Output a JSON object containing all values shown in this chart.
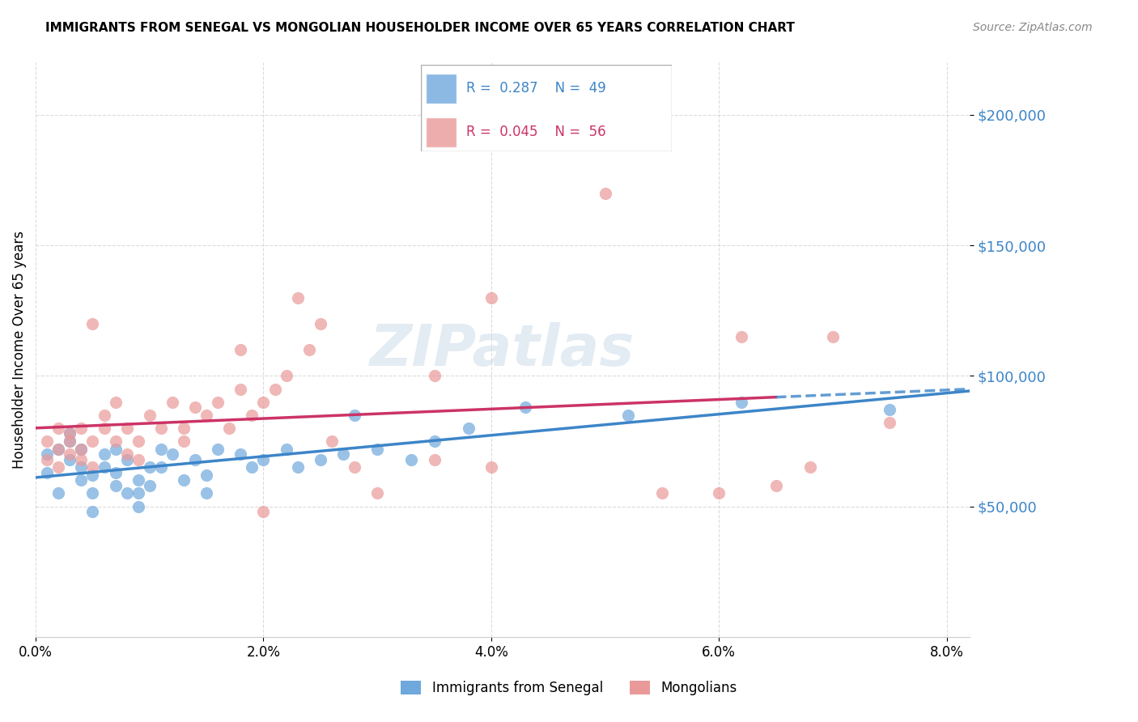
{
  "title": "IMMIGRANTS FROM SENEGAL VS MONGOLIAN HOUSEHOLDER INCOME OVER 65 YEARS CORRELATION CHART",
  "source": "Source: ZipAtlas.com",
  "ylabel": "Householder Income Over 65 years",
  "xlabel_ticks": [
    "0.0%",
    "2.0%",
    "4.0%",
    "6.0%",
    "8.0%"
  ],
  "xlabel_vals": [
    0.0,
    0.02,
    0.04,
    0.06,
    0.08
  ],
  "ylim": [
    0,
    220000
  ],
  "xlim": [
    0.0,
    0.082
  ],
  "ytick_vals": [
    50000,
    100000,
    150000,
    200000
  ],
  "ytick_labels": [
    "$50,000",
    "$100,000",
    "$150,000",
    "$200,000"
  ],
  "legend_r1": "R = 0.287",
  "legend_n1": "N = 49",
  "legend_r2": "R = 0.045",
  "legend_n2": "N = 56",
  "senegal_color": "#6fa8dc",
  "mongolian_color": "#ea9999",
  "senegal_line_color": "#3d85c8",
  "mongolian_line_color": "#cc3366",
  "watermark": "ZIPatlas",
  "senegal_x": [
    0.001,
    0.001,
    0.002,
    0.002,
    0.003,
    0.003,
    0.003,
    0.004,
    0.004,
    0.004,
    0.005,
    0.005,
    0.005,
    0.006,
    0.006,
    0.007,
    0.007,
    0.007,
    0.008,
    0.008,
    0.009,
    0.009,
    0.009,
    0.01,
    0.01,
    0.011,
    0.011,
    0.012,
    0.013,
    0.014,
    0.015,
    0.015,
    0.016,
    0.018,
    0.019,
    0.02,
    0.022,
    0.023,
    0.025,
    0.027,
    0.028,
    0.03,
    0.033,
    0.035,
    0.038,
    0.043,
    0.052,
    0.062,
    0.075
  ],
  "senegal_y": [
    63000,
    70000,
    72000,
    55000,
    75000,
    68000,
    78000,
    65000,
    60000,
    72000,
    55000,
    48000,
    62000,
    70000,
    65000,
    58000,
    63000,
    72000,
    55000,
    68000,
    60000,
    55000,
    50000,
    65000,
    58000,
    72000,
    65000,
    70000,
    60000,
    68000,
    62000,
    55000,
    72000,
    70000,
    65000,
    68000,
    72000,
    65000,
    68000,
    70000,
    85000,
    72000,
    68000,
    75000,
    80000,
    88000,
    85000,
    90000,
    87000
  ],
  "mongolian_x": [
    0.001,
    0.001,
    0.002,
    0.002,
    0.002,
    0.003,
    0.003,
    0.003,
    0.004,
    0.004,
    0.004,
    0.005,
    0.005,
    0.005,
    0.006,
    0.006,
    0.007,
    0.007,
    0.008,
    0.008,
    0.009,
    0.009,
    0.01,
    0.011,
    0.012,
    0.013,
    0.013,
    0.014,
    0.015,
    0.016,
    0.017,
    0.018,
    0.019,
    0.02,
    0.021,
    0.022,
    0.023,
    0.024,
    0.025,
    0.026,
    0.028,
    0.03,
    0.035,
    0.04,
    0.05,
    0.055,
    0.06,
    0.065,
    0.068,
    0.018,
    0.02,
    0.035,
    0.04,
    0.062,
    0.07,
    0.075
  ],
  "mongolian_y": [
    75000,
    68000,
    72000,
    80000,
    65000,
    78000,
    70000,
    75000,
    68000,
    72000,
    80000,
    120000,
    65000,
    75000,
    80000,
    85000,
    90000,
    75000,
    70000,
    80000,
    68000,
    75000,
    85000,
    80000,
    90000,
    75000,
    80000,
    88000,
    85000,
    90000,
    80000,
    95000,
    85000,
    90000,
    95000,
    100000,
    130000,
    110000,
    120000,
    75000,
    65000,
    55000,
    68000,
    130000,
    170000,
    55000,
    55000,
    58000,
    65000,
    110000,
    48000,
    100000,
    65000,
    115000,
    115000,
    82000
  ]
}
